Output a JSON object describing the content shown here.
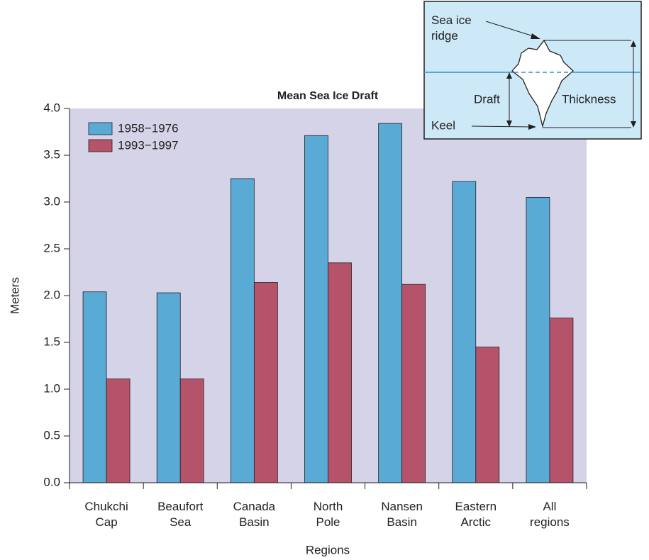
{
  "chart_data": {
    "type": "bar",
    "title": "Mean Sea Ice Draft",
    "x_label": "Regions",
    "y_label": "Meters",
    "categories": [
      "Chukchi Cap",
      "Beaufort Sea",
      "Canada Basin",
      "North Pole",
      "Nansen Basin",
      "Eastern Arctic",
      "All regions"
    ],
    "series": [
      {
        "name": "1958−1976",
        "color": "#5aaad6",
        "values": [
          2.04,
          2.03,
          3.25,
          3.71,
          3.84,
          3.22,
          3.05
        ]
      },
      {
        "name": "1993−1997",
        "color": "#b5536a",
        "values": [
          1.11,
          1.11,
          2.14,
          2.35,
          2.12,
          1.45,
          1.76
        ]
      }
    ],
    "ylim": [
      0,
      4
    ],
    "yticks": [
      {
        "value": 0,
        "label": "0.0"
      },
      0.5,
      {
        "value": 1,
        "label": "1.0"
      },
      1.5,
      {
        "value": 2,
        "label": "2.0"
      },
      2.5,
      {
        "value": 3,
        "label": "3.0"
      },
      3.5,
      {
        "value": 4,
        "label": "4.0"
      }
    ],
    "plot_background": "#d5d3e8",
    "legend": "top-left"
  },
  "inset": {
    "ridge_label": "Sea ice ridge",
    "draft_label": "Draft",
    "thickness_label": "Thickness",
    "keel_label": "Keel"
  }
}
